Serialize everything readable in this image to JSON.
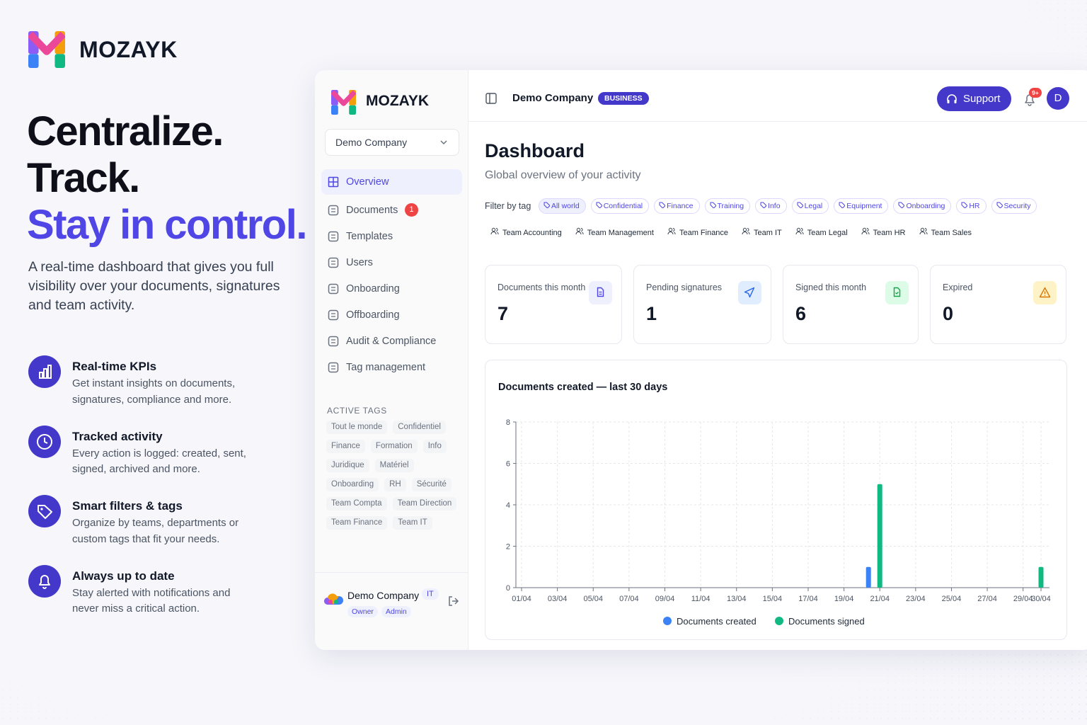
{
  "brand": {
    "name": "MOZAYK"
  },
  "hero": {
    "lines": [
      "Centralize.",
      "Track.",
      "Stay in control."
    ],
    "description": "A real-time dashboard that gives you full visibility over your documents, signatures and team activity."
  },
  "features": [
    {
      "title": "Real-time KPIs",
      "text": "Get instant insights on documents, signatures, compliance and more."
    },
    {
      "title": "Tracked activity",
      "text": "Every action is logged: created, sent, signed, archived and more."
    },
    {
      "title": "Smart filters & tags",
      "text": "Organize by teams, departments or custom tags that fit your needs."
    },
    {
      "title": "Always up to date",
      "text": "Stay alerted with notifications and never miss a critical action."
    }
  ],
  "sidebar": {
    "brand": "MOZAYK",
    "company_select": "Demo Company",
    "nav": [
      {
        "label": "Overview"
      },
      {
        "label": "Documents",
        "badge": 1
      },
      {
        "label": "Templates"
      },
      {
        "label": "Users"
      },
      {
        "label": "Onboarding"
      },
      {
        "label": "Offboarding"
      },
      {
        "label": "Audit & Compliance"
      },
      {
        "label": "Tag management"
      }
    ],
    "active_tags_title": "ACTIVE TAGS",
    "active_tags": [
      "Tout le monde",
      "Confidentiel",
      "Finance",
      "Formation",
      "Info",
      "Juridique",
      "Matériel",
      "Onboarding",
      "RH",
      "Sécurité",
      "Team Compta",
      "Team Direction",
      "Team Finance",
      "Team IT"
    ],
    "footer": {
      "company": "Demo Company",
      "badge": "IT",
      "roles": [
        "Owner",
        "Admin"
      ]
    }
  },
  "topbar": {
    "company": "Demo Company",
    "plan": "BUSINESS",
    "support": "Support",
    "notifications": "9+",
    "avatar": "D"
  },
  "dashboard": {
    "title": "Dashboard",
    "subtitle": "Global overview of your activity",
    "filter_label": "Filter by tag",
    "tags": [
      "All world",
      "Confidential",
      "Finance",
      "Training",
      "Info",
      "Legal",
      "Equipment",
      "Onboarding",
      "HR",
      "Security"
    ],
    "teams": [
      "Team Accounting",
      "Team Management",
      "Team Finance",
      "Team IT",
      "Team Legal",
      "Team HR",
      "Team Sales"
    ],
    "kpis": [
      {
        "label": "Documents this month",
        "value": 7
      },
      {
        "label": "Pending signatures",
        "value": 1
      },
      {
        "label": "Signed this month",
        "value": 6
      },
      {
        "label": "Expired",
        "value": 0
      }
    ]
  },
  "chart_data": {
    "type": "bar",
    "title": "Documents created — last 30 days",
    "categories": [
      "01/04",
      null,
      "03/04",
      null,
      "05/04",
      null,
      "07/04",
      null,
      "09/04",
      null,
      "11/04",
      null,
      "13/04",
      null,
      "15/04",
      null,
      "17/04",
      null,
      "19/04",
      null,
      "21/04",
      null,
      "23/04",
      null,
      "25/04",
      null,
      "27/04",
      null,
      "29/04",
      "30/04"
    ],
    "series": [
      {
        "name": "Documents created",
        "color": "#3b82f6",
        "values": [
          0,
          0,
          0,
          0,
          0,
          0,
          0,
          0,
          0,
          0,
          0,
          0,
          0,
          0,
          0,
          0,
          0,
          0,
          0,
          0,
          1,
          0,
          0,
          0,
          0,
          0,
          0,
          0,
          0,
          0
        ]
      },
      {
        "name": "Documents signed",
        "color": "#10b981",
        "values": [
          0,
          0,
          0,
          0,
          0,
          0,
          0,
          0,
          0,
          0,
          0,
          0,
          0,
          0,
          0,
          0,
          0,
          0,
          0,
          0,
          5,
          0,
          0,
          0,
          0,
          0,
          0,
          0,
          0,
          1
        ]
      }
    ],
    "ylim": [
      0,
      8
    ],
    "yticks": [
      0,
      2,
      4,
      6,
      8
    ],
    "grid": true
  }
}
